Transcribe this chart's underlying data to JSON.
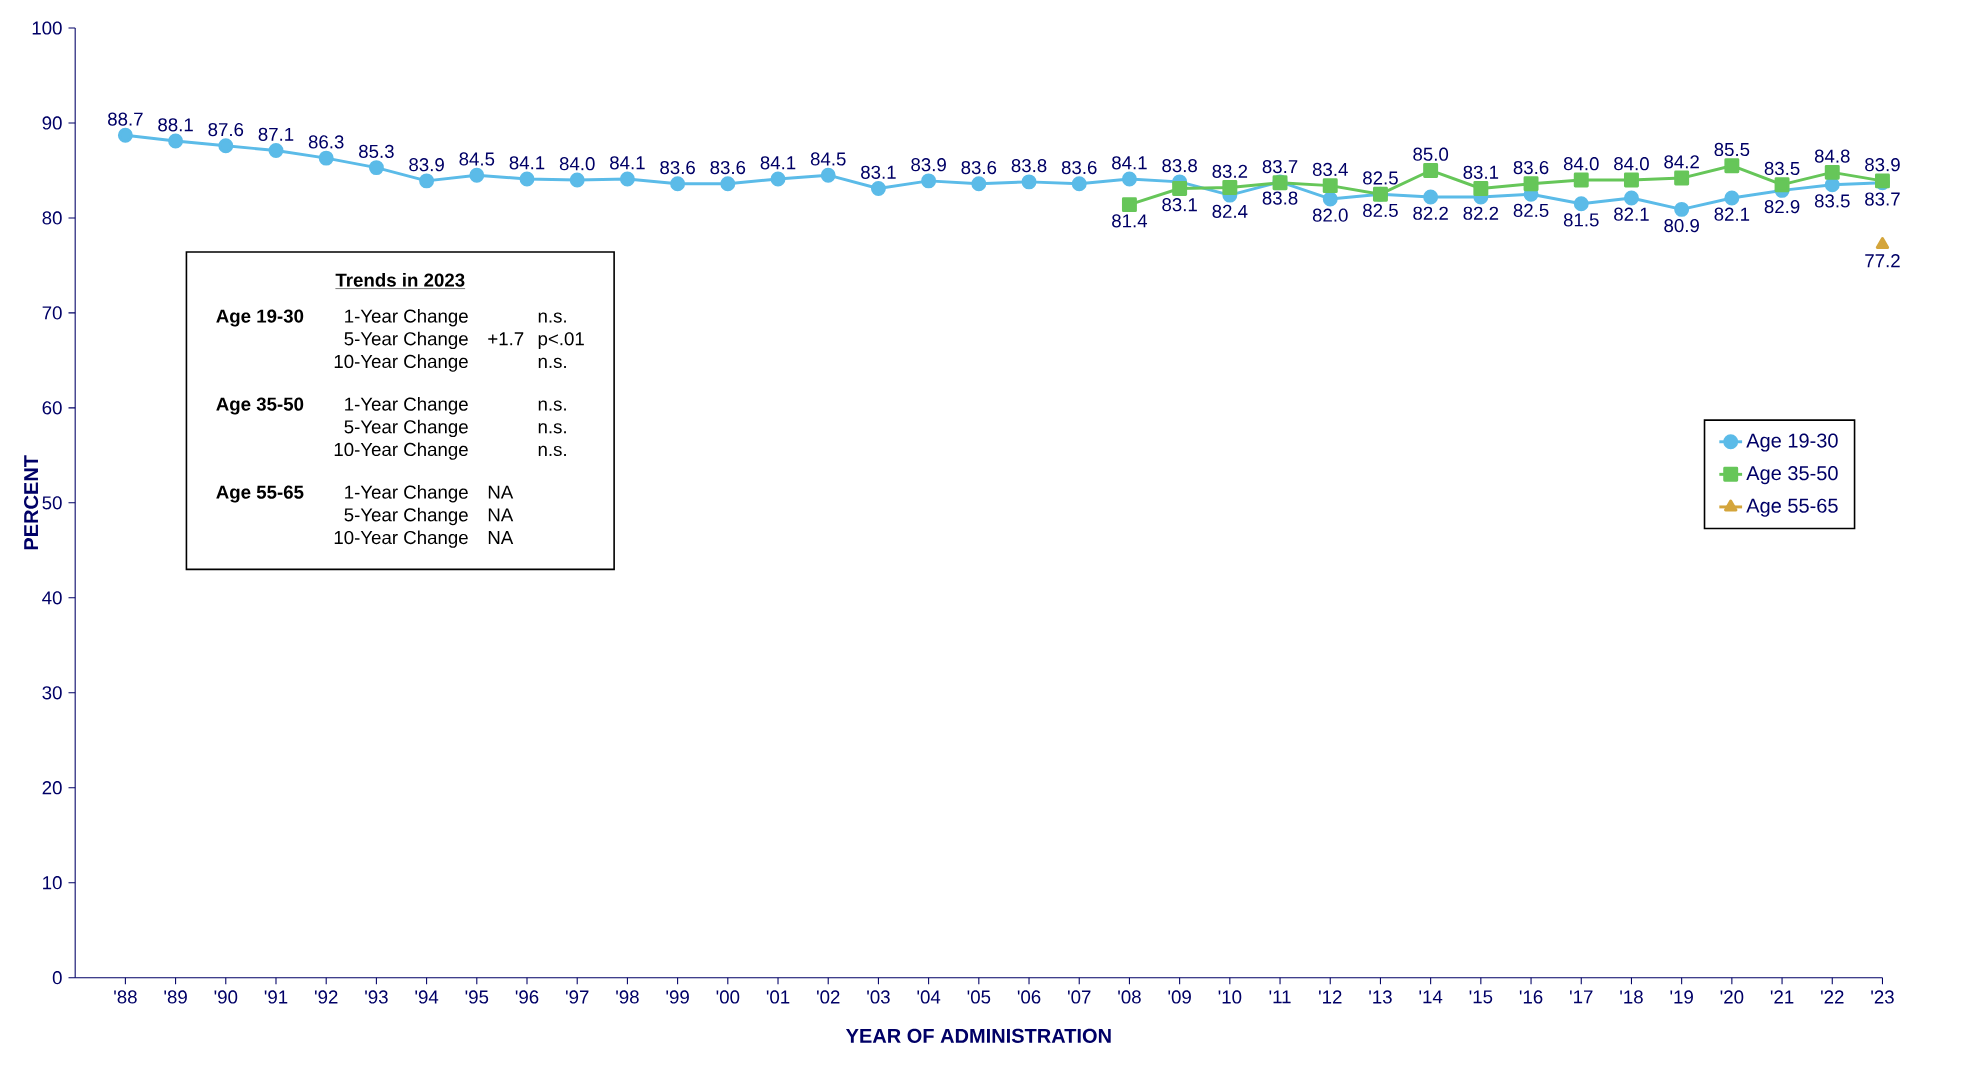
{
  "chart_data": {
    "type": "line",
    "xlabel": "YEAR OF ADMINISTRATION",
    "ylabel": "PERCENT",
    "categories": [
      "'88",
      "'89",
      "'90",
      "'91",
      "'92",
      "'93",
      "'94",
      "'95",
      "'96",
      "'97",
      "'98",
      "'99",
      "'00",
      "'01",
      "'02",
      "'03",
      "'04",
      "'05",
      "'06",
      "'07",
      "'08",
      "'09",
      "'10",
      "'11",
      "'12",
      "'13",
      "'14",
      "'15",
      "'16",
      "'17",
      "'18",
      "'19",
      "'20",
      "'21",
      "'22",
      "'23"
    ],
    "series": [
      {
        "name": "Age 19-30",
        "color": "#5bbbe8",
        "marker": "circle",
        "values": [
          88.7,
          88.1,
          87.6,
          87.1,
          86.3,
          85.3,
          83.9,
          84.5,
          84.1,
          84.0,
          84.1,
          83.6,
          83.6,
          84.1,
          84.5,
          83.1,
          83.9,
          83.6,
          83.8,
          83.6,
          84.1,
          83.8,
          82.4,
          83.8,
          82.0,
          82.5,
          82.2,
          82.2,
          82.5,
          81.5,
          82.1,
          80.9,
          82.1,
          82.9,
          83.5,
          83.7
        ],
        "value_labels": [
          "88.7",
          "88.1",
          "87.6",
          "87.1",
          "86.3",
          "85.3",
          "83.9",
          "84.5",
          "84.1",
          "84.0",
          "84.1",
          "83.6",
          "83.6",
          "84.1",
          "84.5",
          "83.1",
          "83.9",
          "83.6",
          "83.8",
          "83.6",
          "84.1",
          "83.8",
          "82.4",
          "83.8",
          "82.0",
          "82.5",
          "82.2",
          "82.2",
          "82.5",
          "81.5",
          "82.1",
          "80.9",
          "82.1",
          "82.9",
          "83.5",
          "83.7"
        ]
      },
      {
        "name": "Age 35-50",
        "color": "#66c659",
        "marker": "square",
        "values": [
          null,
          null,
          null,
          null,
          null,
          null,
          null,
          null,
          null,
          null,
          null,
          null,
          null,
          null,
          null,
          null,
          null,
          null,
          null,
          null,
          81.4,
          83.1,
          83.2,
          83.7,
          83.4,
          82.5,
          85.0,
          83.1,
          83.6,
          84.0,
          84.0,
          84.2,
          85.5,
          83.5,
          84.8,
          83.9
        ],
        "value_labels": [
          null,
          null,
          null,
          null,
          null,
          null,
          null,
          null,
          null,
          null,
          null,
          null,
          null,
          null,
          null,
          null,
          null,
          null,
          null,
          null,
          "81.4",
          "83.1",
          "83.2",
          "83.7",
          "83.4",
          "82.5",
          "85.0",
          "83.1",
          "83.6",
          "84.0",
          "84.0",
          "84.2",
          "85.5",
          "83.5",
          "84.8",
          "83.9"
        ]
      },
      {
        "name": "Age 55-65",
        "color": "#d4a53b",
        "marker": "triangle",
        "values": [
          null,
          null,
          null,
          null,
          null,
          null,
          null,
          null,
          null,
          null,
          null,
          null,
          null,
          null,
          null,
          null,
          null,
          null,
          null,
          null,
          null,
          null,
          null,
          null,
          null,
          null,
          null,
          null,
          null,
          null,
          null,
          null,
          null,
          null,
          null,
          77.2
        ],
        "value_labels": [
          null,
          null,
          null,
          null,
          null,
          null,
          null,
          null,
          null,
          null,
          null,
          null,
          null,
          null,
          null,
          null,
          null,
          null,
          null,
          null,
          null,
          null,
          null,
          null,
          null,
          null,
          null,
          null,
          null,
          null,
          null,
          null,
          null,
          null,
          null,
          "77.2"
        ]
      }
    ],
    "ylim": [
      0,
      100
    ],
    "yticks": [
      0,
      10,
      20,
      30,
      40,
      50,
      60,
      70,
      80,
      90,
      100
    ],
    "legend": "right",
    "annotations": [
      "Trends in 2023",
      "Age 19-30",
      "1-Year Change",
      "n.s.",
      "5-Year Change",
      "+1.7",
      "p<.01",
      "10-Year Change",
      "n.s.",
      "Age 35-50",
      "1-Year Change",
      "n.s.",
      "5-Year Change",
      "n.s.",
      "10-Year Change",
      "n.s.",
      "Age 55-65",
      "1-Year Change",
      "NA",
      "5-Year Change",
      "NA",
      "10-Year Change",
      "NA"
    ]
  }
}
